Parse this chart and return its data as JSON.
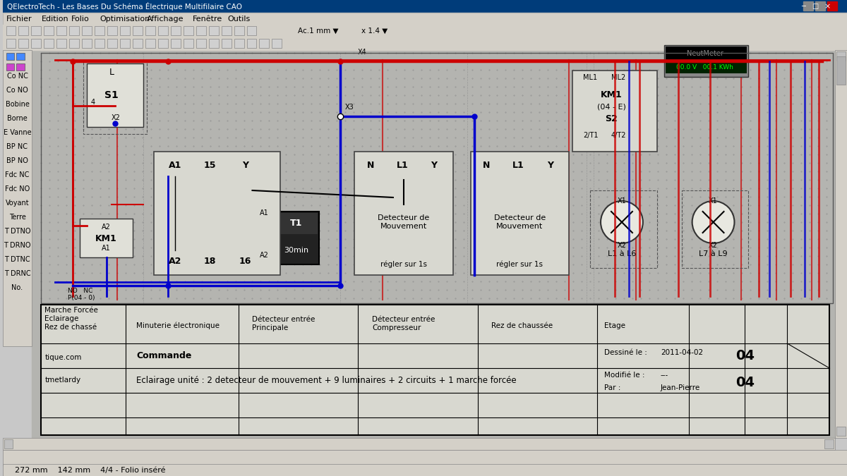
{
  "bg_color": "#c8c8c8",
  "title_bar_color": "#d4d0c8",
  "menu_bg": "#d4d0c8",
  "toolbar_bg": "#d4d0c8",
  "canvas_bg": "#b8b8b8",
  "grid_color": "#a0a0a0",
  "red_wire": "#cc0000",
  "blue_wire": "#0000cc",
  "black_wire": "#000000",
  "component_bg": "#e8e8e0",
  "component_border": "#000000",
  "title_text": "Les Bases Du Schéma Électrique Multifilaire CAO",
  "menu_items": [
    "Fichier",
    "Edition",
    "Folio",
    "Optimisation",
    "Affichage",
    "Fenêtre",
    "Outils"
  ],
  "left_panel_items": [
    "Co NC",
    "Co NO",
    "Bobine",
    "Borne",
    "E Vanne",
    "BP NC",
    "BP NO",
    "Fdc NC",
    "Fdc NO",
    "Voyant",
    "Terre",
    "T DTNO",
    "T DRNO",
    "T DTNC",
    "T DRNC",
    "No."
  ],
  "bottom_labels_row1": [
    "Marche Forcée\nEclairage\nRez de chassé",
    "Minuterie électronique",
    "Détecteur entrée\nPrincipale",
    "Détecteur entrée\nCompresseur",
    "Rez de chaussée",
    "Etage"
  ],
  "bottom_label2": "Commande",
  "bottom_label3": "Eclairage unité : 2 detecteur de mouvement + 9 luminaires + 2 circuits + 1 marche forcée",
  "date_text": "2011-04-02",
  "page_num": "04",
  "modified": "---",
  "by": "Jean-Pierre",
  "website": "tique.com",
  "initials": "tmetlardy",
  "status_bar": "272 mm    142 mm    4/4 - Folio inséré",
  "component_labels": {
    "S1": "S1",
    "KM1": "KM1",
    "T1": "T1",
    "KM1_04E": "KM1\n(04 - E)\nS2",
    "L1_a_L6": "L1 à L6",
    "L7_a_L9": "L7 à L9",
    "Det1": "Detecteur de\nMouvement",
    "Det2": "Detecteur de\nMouvement",
    "regler": "régler sur 1s",
    "T1_time": "30min"
  }
}
